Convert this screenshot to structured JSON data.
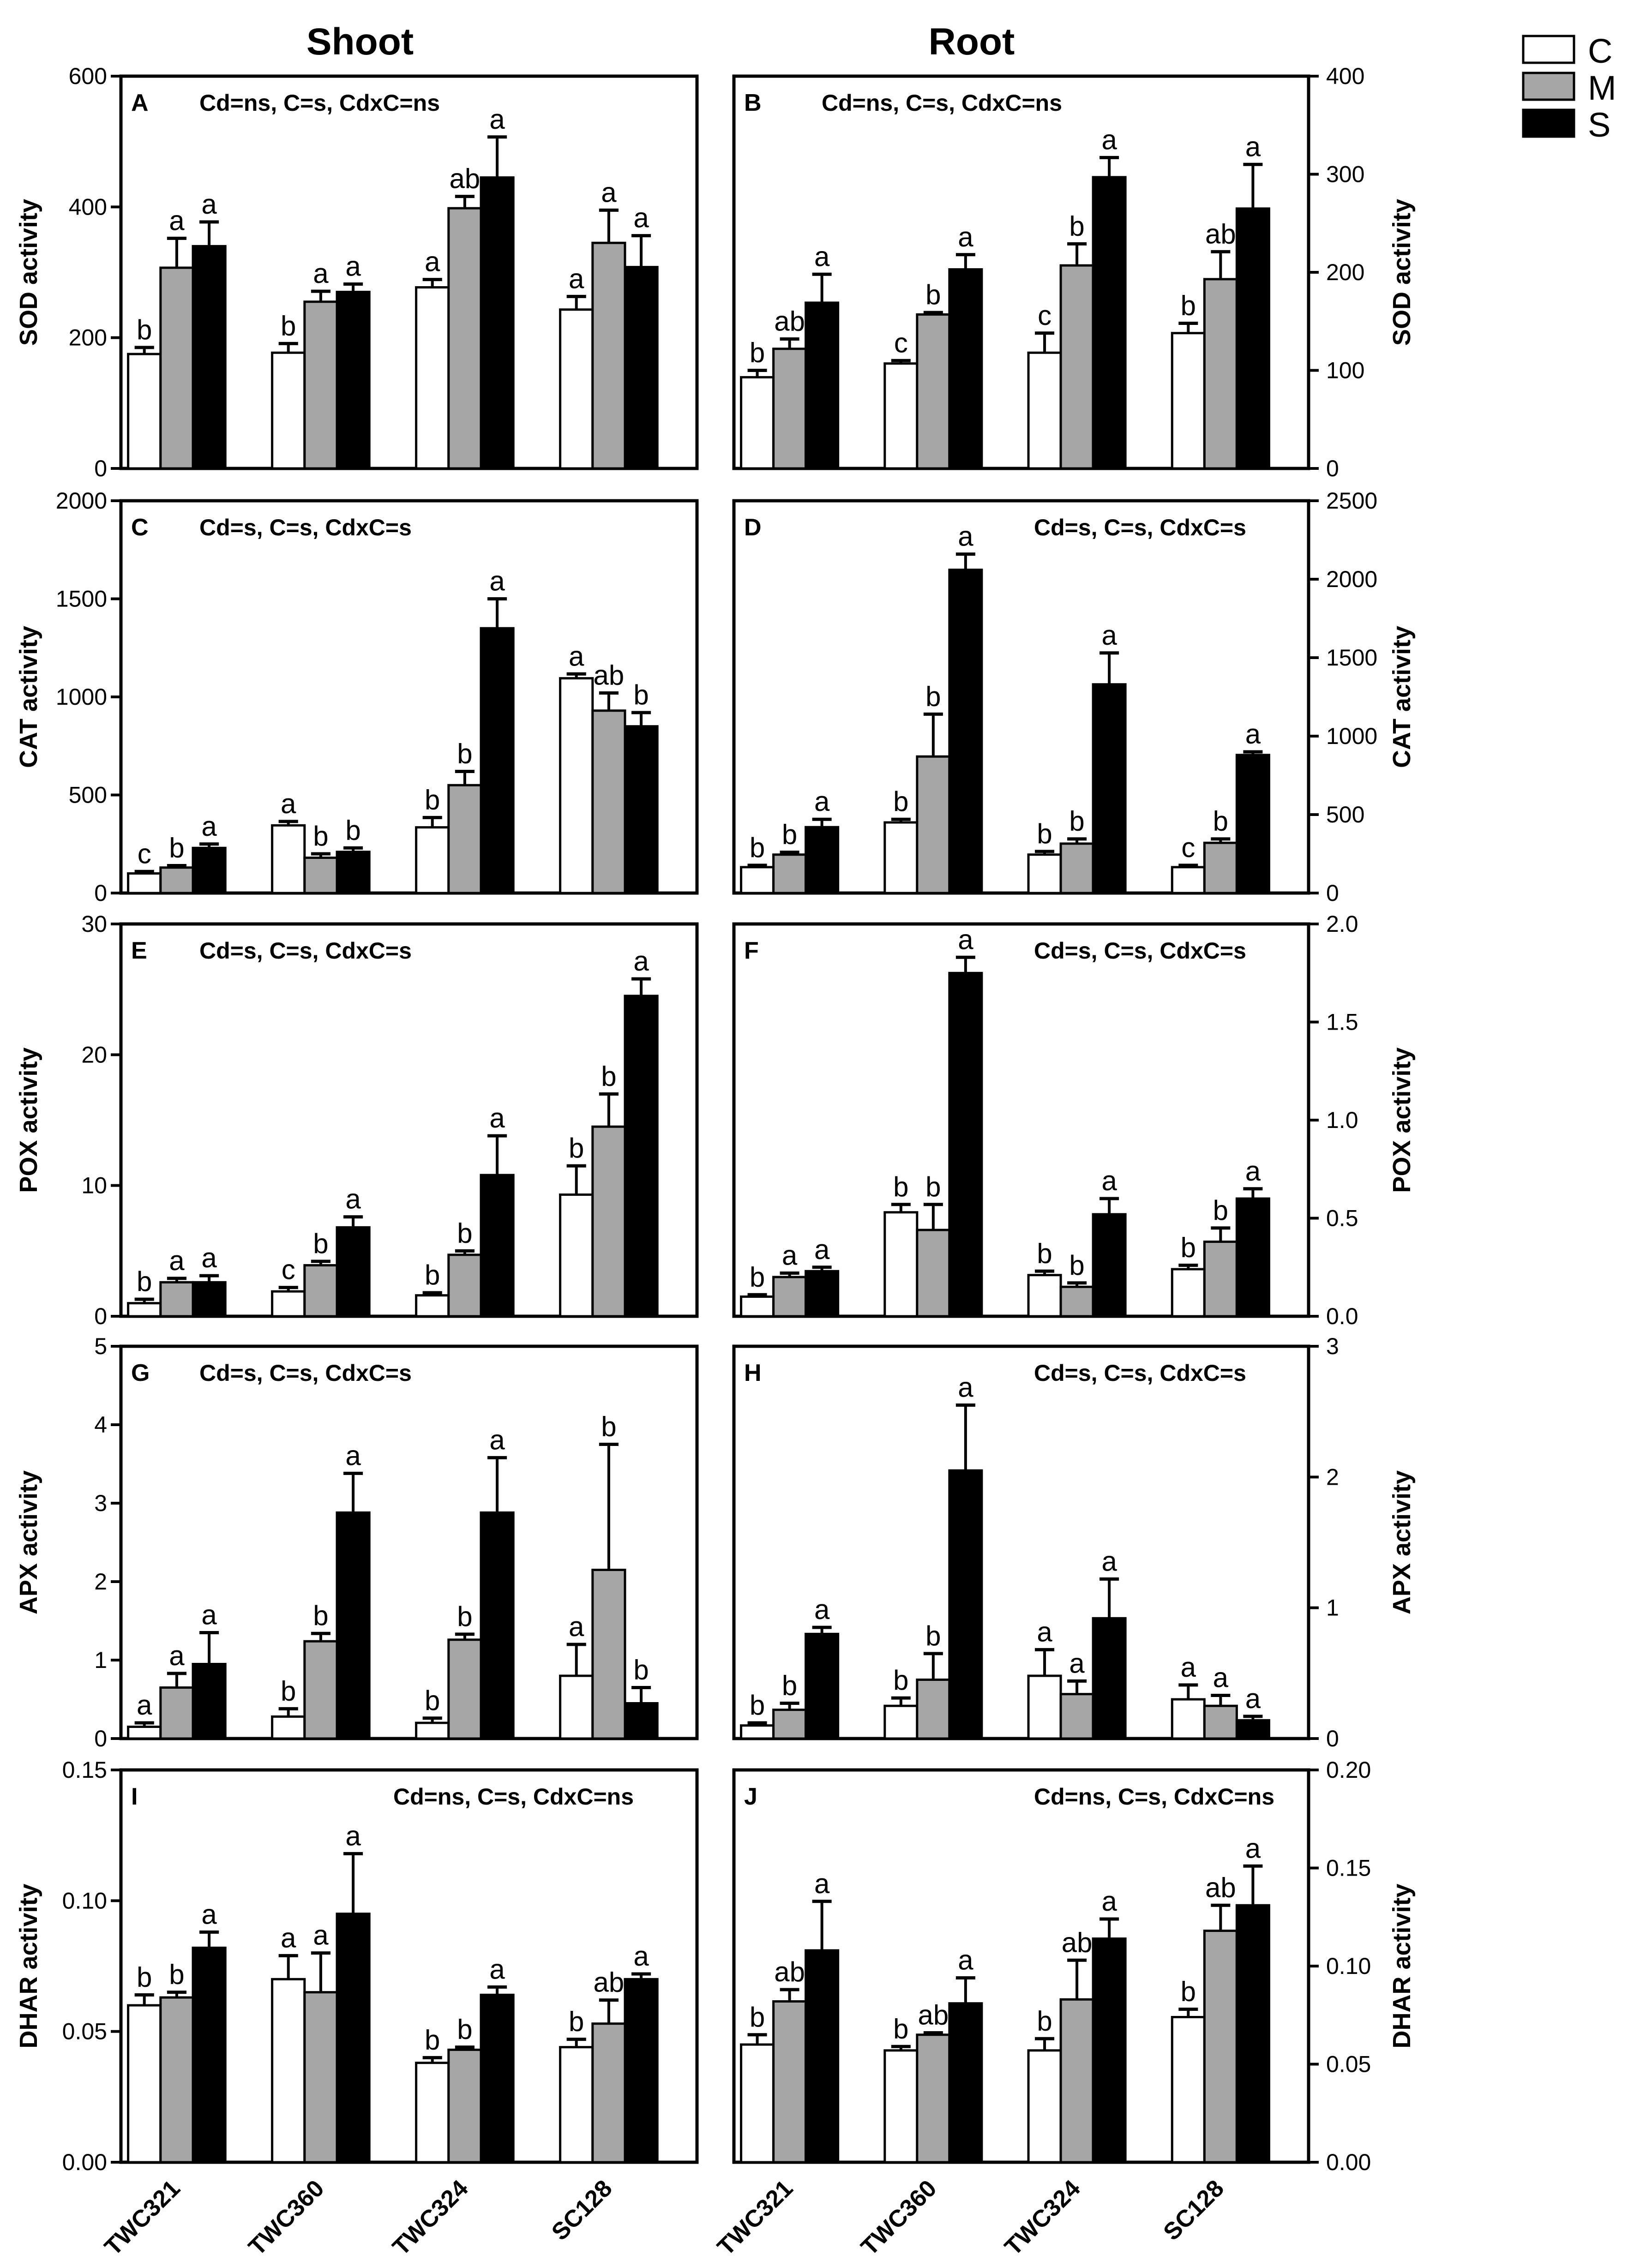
{
  "column_titles": {
    "shoot": "Shoot",
    "root": "Root"
  },
  "legend": [
    {
      "key": "C",
      "color": "#ffffff"
    },
    {
      "key": "M",
      "color": "#a6a6a6"
    },
    {
      "key": "S",
      "color": "#000000"
    }
  ],
  "colors": {
    "C": "#ffffff",
    "M": "#a6a6a6",
    "S": "#000000",
    "stroke": "#000000"
  },
  "chart_data": [
    {
      "panel": "A",
      "type": "bar",
      "ylabel": "SOD activity",
      "stats": "Cd=ns, C=s, CdxC=ns",
      "ylim": [
        0,
        600
      ],
      "yticks": [
        "0",
        "200",
        "400",
        "600"
      ],
      "categories": [
        "TWC321",
        "TWC360",
        "TWC324",
        "SC128"
      ],
      "series": [
        {
          "name": "C",
          "values": [
            175,
            177,
            277,
            243
          ],
          "errors": [
            10,
            14,
            12,
            20
          ],
          "letters": [
            "b",
            "b",
            "a",
            "a"
          ]
        },
        {
          "name": "M",
          "values": [
            307,
            255,
            398,
            345
          ],
          "errors": [
            45,
            16,
            18,
            50
          ],
          "letters": [
            "a",
            "a",
            "ab",
            "a"
          ]
        },
        {
          "name": "S",
          "values": [
            340,
            270,
            445,
            308
          ],
          "errors": [
            37,
            12,
            62,
            48
          ],
          "letters": [
            "a",
            "a",
            "a",
            "a"
          ]
        }
      ]
    },
    {
      "panel": "B",
      "type": "bar",
      "ylabel": "SOD activity",
      "stats": "Cd=ns, C=s, CdxC=ns",
      "ylim": [
        0,
        400
      ],
      "yticks": [
        "0",
        "100",
        "200",
        "300",
        "400"
      ],
      "categories": [
        "TWC321",
        "TWC360",
        "TWC324",
        "SC128"
      ],
      "series": [
        {
          "name": "C",
          "values": [
            93,
            107,
            118,
            138
          ],
          "errors": [
            7,
            3,
            20,
            10
          ],
          "letters": [
            "b",
            "c",
            "c",
            "b"
          ]
        },
        {
          "name": "M",
          "values": [
            122,
            157,
            207,
            193
          ],
          "errors": [
            10,
            2,
            22,
            28
          ],
          "letters": [
            "ab",
            "b",
            "b",
            "ab"
          ]
        },
        {
          "name": "S",
          "values": [
            169,
            203,
            297,
            265
          ],
          "errors": [
            29,
            15,
            20,
            45
          ],
          "letters": [
            "a",
            "a",
            "a",
            "a"
          ]
        }
      ]
    },
    {
      "panel": "C",
      "type": "bar",
      "ylabel": "CAT activity",
      "stats": "Cd=s, C=s, CdxC=s",
      "ylim": [
        0,
        2000
      ],
      "yticks": [
        "0",
        "500",
        "1000",
        "1500",
        "2000"
      ],
      "categories": [
        "TWC321",
        "TWC360",
        "TWC324",
        "SC128"
      ],
      "series": [
        {
          "name": "C",
          "values": [
            100,
            345,
            335,
            1095
          ],
          "errors": [
            10,
            20,
            50,
            22
          ],
          "letters": [
            "c",
            "a",
            "b",
            "a"
          ]
        },
        {
          "name": "M",
          "values": [
            130,
            180,
            550,
            930
          ],
          "errors": [
            10,
            20,
            70,
            90
          ],
          "letters": [
            "b",
            "b",
            "b",
            "ab"
          ]
        },
        {
          "name": "S",
          "values": [
            230,
            210,
            1350,
            850
          ],
          "errors": [
            20,
            20,
            150,
            70
          ],
          "letters": [
            "a",
            "b",
            "a",
            "b"
          ]
        }
      ]
    },
    {
      "panel": "D",
      "type": "bar",
      "ylabel": "CAT activity",
      "stats": "Cd=s, C=s, CdxC=s",
      "ylim": [
        0,
        2500
      ],
      "yticks": [
        "0",
        "500",
        "1000",
        "1500",
        "2000",
        "2500"
      ],
      "categories": [
        "TWC321",
        "TWC360",
        "TWC324",
        "SC128"
      ],
      "series": [
        {
          "name": "C",
          "values": [
            165,
            450,
            245,
            165
          ],
          "errors": [
            12,
            20,
            20,
            12
          ],
          "letters": [
            "b",
            "b",
            "b",
            "c"
          ]
        },
        {
          "name": "M",
          "values": [
            245,
            870,
            315,
            320
          ],
          "errors": [
            15,
            270,
            30,
            25
          ],
          "letters": [
            "b",
            "b",
            "b",
            "b"
          ]
        },
        {
          "name": "S",
          "values": [
            420,
            2060,
            1330,
            880
          ],
          "errors": [
            50,
            100,
            200,
            20
          ],
          "letters": [
            "a",
            "a",
            "a",
            "a"
          ]
        }
      ]
    },
    {
      "panel": "E",
      "type": "bar",
      "ylabel": "POX activity",
      "stats": "Cd=s, C=s, CdxC=s",
      "ylim": [
        0,
        30
      ],
      "yticks": [
        "0",
        "10",
        "20",
        "30"
      ],
      "categories": [
        "TWC321",
        "TWC360",
        "TWC324",
        "SC128"
      ],
      "series": [
        {
          "name": "C",
          "values": [
            1.0,
            1.9,
            1.6,
            9.3
          ],
          "errors": [
            0.3,
            0.3,
            0.2,
            2.2
          ],
          "letters": [
            "b",
            "c",
            "b",
            "b"
          ]
        },
        {
          "name": "M",
          "values": [
            2.6,
            3.9,
            4.7,
            14.5
          ],
          "errors": [
            0.3,
            0.3,
            0.3,
            2.5
          ],
          "letters": [
            "a",
            "b",
            "b",
            "b"
          ]
        },
        {
          "name": "S",
          "values": [
            2.6,
            6.8,
            10.8,
            24.5
          ],
          "errors": [
            0.5,
            0.8,
            3.0,
            1.3
          ],
          "letters": [
            "a",
            "a",
            "a",
            "a"
          ]
        }
      ]
    },
    {
      "panel": "F",
      "type": "bar",
      "ylabel": "POX activity",
      "stats": "Cd=s, C=s, CdxC=s",
      "ylim": [
        0,
        2.0
      ],
      "yticks": [
        "0.0",
        "0.5",
        "1.0",
        "1.5",
        "2.0"
      ],
      "categories": [
        "TWC321",
        "TWC360",
        "TWC324",
        "SC128"
      ],
      "series": [
        {
          "name": "C",
          "values": [
            0.1,
            0.53,
            0.21,
            0.24
          ],
          "errors": [
            0.01,
            0.04,
            0.02,
            0.02
          ],
          "letters": [
            "b",
            "b",
            "b",
            "b"
          ]
        },
        {
          "name": "M",
          "values": [
            0.2,
            0.44,
            0.15,
            0.38
          ],
          "errors": [
            0.02,
            0.13,
            0.02,
            0.07
          ],
          "letters": [
            "a",
            "b",
            "b",
            "b"
          ]
        },
        {
          "name": "S",
          "values": [
            0.23,
            1.75,
            0.52,
            0.6
          ],
          "errors": [
            0.02,
            0.08,
            0.08,
            0.05
          ],
          "letters": [
            "a",
            "a",
            "a",
            "a"
          ]
        }
      ]
    },
    {
      "panel": "G",
      "type": "bar",
      "ylabel": "APX activity",
      "stats": "Cd=s, C=s, CdxC=s",
      "ylim": [
        0,
        5
      ],
      "yticks": [
        "0",
        "1",
        "2",
        "3",
        "4",
        "5"
      ],
      "categories": [
        "TWC321",
        "TWC360",
        "TWC324",
        "SC128"
      ],
      "series": [
        {
          "name": "C",
          "values": [
            0.15,
            0.28,
            0.2,
            0.8
          ],
          "errors": [
            0.05,
            0.1,
            0.06,
            0.4
          ],
          "letters": [
            "a",
            "b",
            "b",
            "a"
          ]
        },
        {
          "name": "M",
          "values": [
            0.65,
            1.24,
            1.26,
            2.15
          ],
          "errors": [
            0.18,
            0.1,
            0.07,
            1.6
          ],
          "letters": [
            "a",
            "b",
            "b",
            "b"
          ]
        },
        {
          "name": "S",
          "values": [
            0.95,
            2.88,
            2.88,
            0.45
          ],
          "errors": [
            0.4,
            0.5,
            0.7,
            0.2
          ],
          "letters": [
            "a",
            "a",
            "a",
            "b"
          ]
        }
      ]
    },
    {
      "panel": "H",
      "type": "bar",
      "ylabel": "APX activity",
      "stats": "Cd=s, C=s, CdxC=s",
      "ylim": [
        0,
        3
      ],
      "yticks": [
        "0",
        "1",
        "2",
        "3"
      ],
      "categories": [
        "TWC321",
        "TWC360",
        "TWC324",
        "SC128"
      ],
      "series": [
        {
          "name": "C",
          "values": [
            0.1,
            0.25,
            0.48,
            0.3
          ],
          "errors": [
            0.02,
            0.06,
            0.2,
            0.11
          ],
          "letters": [
            "b",
            "b",
            "a",
            "a"
          ]
        },
        {
          "name": "M",
          "values": [
            0.22,
            0.45,
            0.34,
            0.25
          ],
          "errors": [
            0.05,
            0.2,
            0.1,
            0.08
          ],
          "letters": [
            "b",
            "b",
            "a",
            "a"
          ]
        },
        {
          "name": "S",
          "values": [
            0.8,
            2.05,
            0.92,
            0.14
          ],
          "errors": [
            0.05,
            0.5,
            0.3,
            0.03
          ],
          "letters": [
            "a",
            "a",
            "a",
            "a"
          ]
        }
      ]
    },
    {
      "panel": "I",
      "type": "bar",
      "ylabel": "DHAR activity",
      "stats": "Cd=ns, C=s, CdxC=ns",
      "ylim": [
        0,
        0.15
      ],
      "yticks": [
        "0.00",
        "0.05",
        "0.10",
        "0.15"
      ],
      "categories": [
        "TWC321",
        "TWC360",
        "TWC324",
        "SC128"
      ],
      "series": [
        {
          "name": "C",
          "values": [
            0.06,
            0.07,
            0.038,
            0.044
          ],
          "errors": [
            0.004,
            0.009,
            0.002,
            0.003
          ],
          "letters": [
            "b",
            "a",
            "b",
            "b"
          ]
        },
        {
          "name": "M",
          "values": [
            0.063,
            0.065,
            0.043,
            0.053
          ],
          "errors": [
            0.002,
            0.015,
            0.001,
            0.009
          ],
          "letters": [
            "b",
            "a",
            "b",
            "ab"
          ]
        },
        {
          "name": "S",
          "values": [
            0.082,
            0.095,
            0.064,
            0.07
          ],
          "errors": [
            0.006,
            0.023,
            0.003,
            0.002
          ],
          "letters": [
            "a",
            "a",
            "a",
            "a"
          ]
        }
      ]
    },
    {
      "panel": "J",
      "type": "bar",
      "ylabel": "DHAR activity",
      "stats": "Cd=ns, C=s, CdxC=ns",
      "ylim": [
        0,
        0.2
      ],
      "yticks": [
        "0.00",
        "0.05",
        "0.10",
        "0.15",
        "0.20"
      ],
      "categories": [
        "TWC321",
        "TWC360",
        "TWC324",
        "SC128"
      ],
      "series": [
        {
          "name": "C",
          "values": [
            0.06,
            0.057,
            0.057,
            0.074
          ],
          "errors": [
            0.005,
            0.002,
            0.006,
            0.004
          ],
          "letters": [
            "b",
            "b",
            "b",
            "b"
          ]
        },
        {
          "name": "M",
          "values": [
            0.082,
            0.065,
            0.083,
            0.118
          ],
          "errors": [
            0.006,
            0.001,
            0.02,
            0.013
          ],
          "letters": [
            "ab",
            "ab",
            "ab",
            "ab"
          ]
        },
        {
          "name": "S",
          "values": [
            0.108,
            0.081,
            0.114,
            0.131
          ],
          "errors": [
            0.025,
            0.013,
            0.01,
            0.02
          ],
          "letters": [
            "a",
            "a",
            "a",
            "a"
          ]
        }
      ]
    }
  ]
}
